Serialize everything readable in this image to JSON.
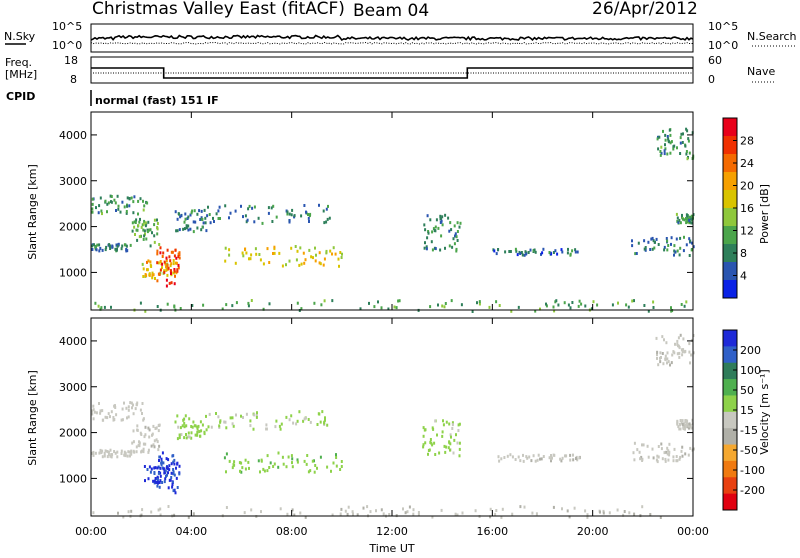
{
  "header": {
    "title": "Christmas Valley East (fitACF)",
    "beam": "Beam 04",
    "date": "26/Apr/2012"
  },
  "panels": {
    "nsky": {
      "label": "N.Sky",
      "right_label": "N.Search",
      "left_ticks": [
        "10^5",
        "10^0"
      ],
      "right_ticks": [
        "10^5",
        "10^0"
      ]
    },
    "freq": {
      "label_line1": "Freq.",
      "label_line2": "[MHz]",
      "right_label": "Nave",
      "left_ticks": [
        "18",
        "8"
      ],
      "right_ticks": [
        "60",
        "0"
      ]
    },
    "cpid": {
      "label": "CPID",
      "value": "normal (fast) 151 IF"
    }
  },
  "colorbars": {
    "power": {
      "label": "Power [dB]",
      "ticks": [
        "28",
        "24",
        "20",
        "16",
        "12",
        "8",
        "4"
      ],
      "colors": [
        "#e8001a",
        "#f03000",
        "#f56a00",
        "#f6a000",
        "#d9c400",
        "#8fc83c",
        "#4ba54b",
        "#2e7f5a",
        "#2a55b0",
        "#0a22e6"
      ]
    },
    "velocity": {
      "label": "Velocity [m s⁻¹]",
      "ticks": [
        "200",
        "100",
        "50",
        "15",
        "-15",
        "-50",
        "-100",
        "-200"
      ],
      "colors": [
        "#1e2ad8",
        "#3060c8",
        "#2f7c5a",
        "#4fb04f",
        "#8ed24a",
        "#c8c8c0",
        "#b0b0a8",
        "#f5a830",
        "#f07a10",
        "#e84010",
        "#e00010"
      ]
    }
  },
  "chart_data": {
    "type": "heatmap",
    "xlabel": "Time UT",
    "x_ticks": [
      "00:00",
      "04:00",
      "08:00",
      "12:00",
      "16:00",
      "20:00",
      "00:00"
    ],
    "xlim": [
      0,
      24
    ],
    "ylabel": "Slant Range [km]",
    "y_ticks": [
      "1000",
      "2000",
      "3000",
      "4000"
    ],
    "ylim": [
      180,
      4500
    ],
    "freq_mhz_segments": [
      [
        0,
        2.9,
        15.5
      ],
      [
        2.9,
        15.0,
        10.5
      ],
      [
        15.0,
        24,
        15.5
      ]
    ],
    "echo_regions": [
      {
        "t": [
          0.0,
          2.2
        ],
        "r": [
          2300,
          2700
        ],
        "power": 8,
        "velocity": 0
      },
      {
        "t": [
          0.0,
          1.6
        ],
        "r": [
          1500,
          1650
        ],
        "power": 6,
        "velocity": 0
      },
      {
        "t": [
          1.6,
          2.7
        ],
        "r": [
          1600,
          2200
        ],
        "power": 10,
        "velocity": -10
      },
      {
        "t": [
          2.0,
          3.4
        ],
        "r": [
          900,
          1300
        ],
        "power": 18,
        "velocity": 220
      },
      {
        "t": [
          2.6,
          3.5
        ],
        "r": [
          700,
          1600
        ],
        "power": 26,
        "velocity": 220
      },
      {
        "t": [
          3.3,
          4.6
        ],
        "r": [
          1900,
          2400
        ],
        "power": 6,
        "velocity": 40
      },
      {
        "t": [
          5.3,
          10.0
        ],
        "r": [
          1150,
          1600
        ],
        "power": 16,
        "velocity": 60
      },
      {
        "t": [
          4.5,
          9.5
        ],
        "r": [
          2100,
          2500
        ],
        "power": 6,
        "velocity": 30
      },
      {
        "t": [
          13.2,
          14.7
        ],
        "r": [
          1500,
          2300
        ],
        "power": 8,
        "velocity": 40
      },
      {
        "t": [
          16.0,
          19.5
        ],
        "r": [
          1400,
          1550
        ],
        "power": 5,
        "velocity": -10
      },
      {
        "t": [
          22.5,
          24.0
        ],
        "r": [
          3500,
          4200
        ],
        "power": 8,
        "velocity": -10
      },
      {
        "t": [
          21.5,
          24.0
        ],
        "r": [
          1400,
          1800
        ],
        "power": 6,
        "velocity": -10
      },
      {
        "t": [
          23.3,
          24.0
        ],
        "r": [
          2100,
          2300
        ],
        "power": 8,
        "velocity": -10
      },
      {
        "t": [
          0.0,
          24.0
        ],
        "r": [
          180,
          420
        ],
        "power": 10,
        "velocity": -20
      }
    ]
  }
}
